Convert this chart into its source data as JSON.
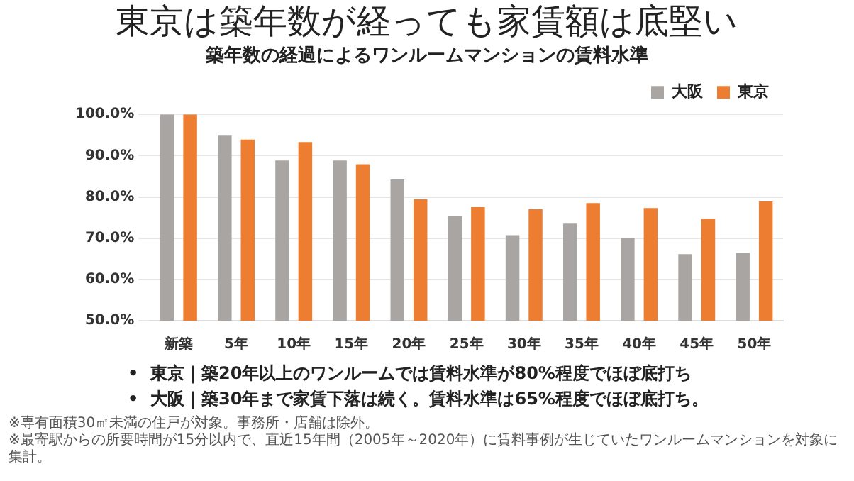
{
  "chart_data": {
    "type": "bar",
    "title": "築年数の経過によるワンルームマンションの賃料水準",
    "subtitle": "東京は築年数が経っても家賃額は底堅い",
    "categories": [
      "新築",
      "5年",
      "10年",
      "15年",
      "20年",
      "25年",
      "30年",
      "35年",
      "40年",
      "45年",
      "50年"
    ],
    "series": [
      {
        "name": "大阪",
        "color": "#a9a5a3",
        "values": [
          100,
          95.0,
          88.8,
          88.8,
          84.2,
          75.3,
          70.7,
          73.5,
          70.0,
          66.1,
          66.4
        ]
      },
      {
        "name": "東京",
        "color": "#ed7d31",
        "values": [
          100,
          93.9,
          93.3,
          87.9,
          79.4,
          77.5,
          77.0,
          78.5,
          77.3,
          74.7,
          78.9
        ]
      }
    ],
    "ylim": [
      50,
      100
    ],
    "yticks": [
      {
        "value": 50,
        "label": "50.0%"
      },
      {
        "value": 60,
        "label": "60.0%"
      },
      {
        "value": 70,
        "label": "70.0%"
      },
      {
        "value": 80,
        "label": "80.0%"
      },
      {
        "value": 90,
        "label": "90.0%"
      },
      {
        "value": 100,
        "label": "100.0%"
      }
    ],
    "grid": "y",
    "legend": "top right",
    "annotations": [
      "•  東京｜築20年以上のワンルームでは賃料水準が80%程度でほぼ底打ち",
      "•  大阪｜築30年まで家賃下落は続く。賃料水準は65%程度でほぼ底打ち。",
      "※専有面積30㎡未満の住戸が対象。事務所・店舗は除外。",
      "※最寄駅からの所要時間が15分以内で、直近15年間（2005年～2020年）に賃料事例が生じていたワンルームマンションを対象に集計。"
    ]
  }
}
